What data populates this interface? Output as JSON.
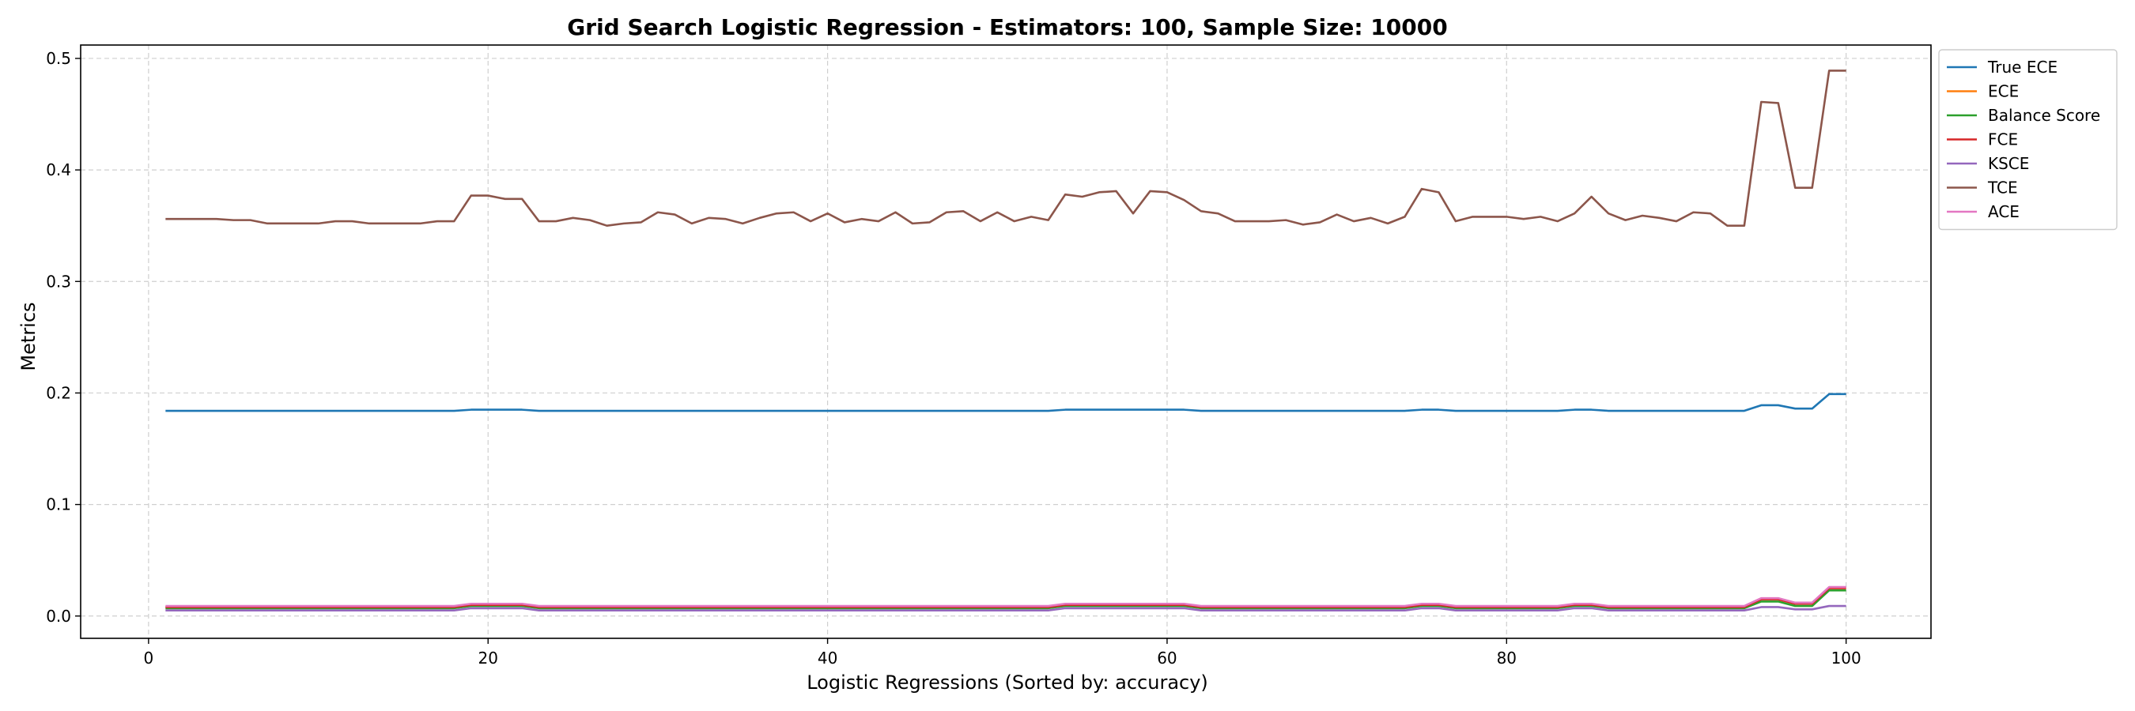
{
  "chart_data": {
    "type": "line",
    "title": "Grid Search Logistic Regression - Estimators: 100, Sample Size: 10000",
    "xlabel": "Logistic Regressions (Sorted by: accuracy)",
    "ylabel": "Metrics",
    "xlim": [
      -4,
      105
    ],
    "ylim": [
      -0.02,
      0.512
    ],
    "xticks": [
      0,
      20,
      40,
      60,
      80,
      100
    ],
    "yticks": [
      0.0,
      0.1,
      0.2,
      0.3,
      0.4,
      0.5
    ],
    "xtick_labels": [
      "0",
      "20",
      "40",
      "60",
      "80",
      "100"
    ],
    "ytick_labels": [
      "0.0",
      "0.1",
      "0.2",
      "0.3",
      "0.4",
      "0.5"
    ],
    "grid": true,
    "legend_position": "outside-top-right",
    "x_start": 1,
    "series": [
      {
        "name": "True ECE",
        "color": "#1f77b4",
        "values": [
          0.184,
          0.184,
          0.184,
          0.184,
          0.184,
          0.184,
          0.184,
          0.184,
          0.184,
          0.184,
          0.184,
          0.184,
          0.184,
          0.184,
          0.184,
          0.184,
          0.184,
          0.184,
          0.185,
          0.185,
          0.185,
          0.185,
          0.184,
          0.184,
          0.184,
          0.184,
          0.184,
          0.184,
          0.184,
          0.184,
          0.184,
          0.184,
          0.184,
          0.184,
          0.184,
          0.184,
          0.184,
          0.184,
          0.184,
          0.184,
          0.184,
          0.184,
          0.184,
          0.184,
          0.184,
          0.184,
          0.184,
          0.184,
          0.184,
          0.184,
          0.184,
          0.184,
          0.184,
          0.185,
          0.185,
          0.185,
          0.185,
          0.185,
          0.185,
          0.185,
          0.185,
          0.184,
          0.184,
          0.184,
          0.184,
          0.184,
          0.184,
          0.184,
          0.184,
          0.184,
          0.184,
          0.184,
          0.184,
          0.184,
          0.185,
          0.185,
          0.184,
          0.184,
          0.184,
          0.184,
          0.184,
          0.184,
          0.184,
          0.185,
          0.185,
          0.184,
          0.184,
          0.184,
          0.184,
          0.184,
          0.184,
          0.184,
          0.184,
          0.184,
          0.189,
          0.189,
          0.186,
          0.186,
          0.199,
          0.199
        ]
      },
      {
        "name": "ECE",
        "color": "#ff7f0e",
        "values": [
          0.008,
          0.008,
          0.008,
          0.008,
          0.008,
          0.008,
          0.008,
          0.008,
          0.008,
          0.008,
          0.008,
          0.008,
          0.008,
          0.008,
          0.008,
          0.008,
          0.008,
          0.008,
          0.01,
          0.01,
          0.01,
          0.01,
          0.008,
          0.008,
          0.008,
          0.008,
          0.008,
          0.008,
          0.008,
          0.008,
          0.008,
          0.008,
          0.008,
          0.008,
          0.008,
          0.008,
          0.008,
          0.008,
          0.008,
          0.008,
          0.008,
          0.008,
          0.008,
          0.008,
          0.008,
          0.008,
          0.008,
          0.008,
          0.008,
          0.008,
          0.008,
          0.008,
          0.008,
          0.01,
          0.01,
          0.01,
          0.01,
          0.01,
          0.01,
          0.01,
          0.01,
          0.008,
          0.008,
          0.008,
          0.008,
          0.008,
          0.008,
          0.008,
          0.008,
          0.008,
          0.008,
          0.008,
          0.008,
          0.008,
          0.01,
          0.01,
          0.008,
          0.008,
          0.008,
          0.008,
          0.008,
          0.008,
          0.008,
          0.01,
          0.01,
          0.008,
          0.008,
          0.008,
          0.008,
          0.008,
          0.008,
          0.008,
          0.008,
          0.008,
          0.015,
          0.015,
          0.011,
          0.011,
          0.025,
          0.025
        ]
      },
      {
        "name": "Balance Score",
        "color": "#2ca02c",
        "values": [
          0.007,
          0.007,
          0.007,
          0.007,
          0.007,
          0.007,
          0.007,
          0.007,
          0.007,
          0.007,
          0.007,
          0.007,
          0.007,
          0.007,
          0.007,
          0.007,
          0.007,
          0.007,
          0.009,
          0.009,
          0.009,
          0.009,
          0.007,
          0.007,
          0.007,
          0.007,
          0.007,
          0.007,
          0.007,
          0.007,
          0.007,
          0.007,
          0.007,
          0.007,
          0.007,
          0.007,
          0.007,
          0.007,
          0.007,
          0.007,
          0.007,
          0.007,
          0.007,
          0.007,
          0.007,
          0.007,
          0.007,
          0.007,
          0.007,
          0.007,
          0.007,
          0.007,
          0.007,
          0.009,
          0.009,
          0.009,
          0.009,
          0.009,
          0.009,
          0.009,
          0.009,
          0.007,
          0.007,
          0.007,
          0.007,
          0.007,
          0.007,
          0.007,
          0.007,
          0.007,
          0.007,
          0.007,
          0.007,
          0.007,
          0.009,
          0.009,
          0.007,
          0.007,
          0.007,
          0.007,
          0.007,
          0.007,
          0.007,
          0.009,
          0.009,
          0.007,
          0.007,
          0.007,
          0.007,
          0.007,
          0.007,
          0.007,
          0.007,
          0.007,
          0.013,
          0.013,
          0.009,
          0.009,
          0.023,
          0.023
        ]
      },
      {
        "name": "FCE",
        "color": "#d62728",
        "values": [
          0.008,
          0.008,
          0.008,
          0.008,
          0.008,
          0.008,
          0.008,
          0.008,
          0.008,
          0.008,
          0.008,
          0.008,
          0.008,
          0.008,
          0.008,
          0.008,
          0.008,
          0.008,
          0.01,
          0.01,
          0.01,
          0.01,
          0.008,
          0.008,
          0.008,
          0.008,
          0.008,
          0.008,
          0.008,
          0.008,
          0.008,
          0.008,
          0.008,
          0.008,
          0.008,
          0.008,
          0.008,
          0.008,
          0.008,
          0.008,
          0.008,
          0.008,
          0.008,
          0.008,
          0.008,
          0.008,
          0.008,
          0.008,
          0.008,
          0.008,
          0.008,
          0.008,
          0.008,
          0.01,
          0.01,
          0.01,
          0.01,
          0.01,
          0.01,
          0.01,
          0.01,
          0.008,
          0.008,
          0.008,
          0.008,
          0.008,
          0.008,
          0.008,
          0.008,
          0.008,
          0.008,
          0.008,
          0.008,
          0.008,
          0.01,
          0.01,
          0.008,
          0.008,
          0.008,
          0.008,
          0.008,
          0.008,
          0.008,
          0.01,
          0.01,
          0.008,
          0.008,
          0.008,
          0.008,
          0.008,
          0.008,
          0.008,
          0.008,
          0.008,
          0.015,
          0.015,
          0.011,
          0.011,
          0.025,
          0.025
        ]
      },
      {
        "name": "KSCE",
        "color": "#9467bd",
        "values": [
          0.005,
          0.005,
          0.005,
          0.005,
          0.005,
          0.005,
          0.005,
          0.005,
          0.005,
          0.005,
          0.005,
          0.005,
          0.005,
          0.005,
          0.005,
          0.005,
          0.005,
          0.005,
          0.007,
          0.007,
          0.007,
          0.007,
          0.005,
          0.005,
          0.005,
          0.005,
          0.005,
          0.005,
          0.005,
          0.005,
          0.005,
          0.005,
          0.005,
          0.005,
          0.005,
          0.005,
          0.005,
          0.005,
          0.005,
          0.005,
          0.005,
          0.005,
          0.005,
          0.005,
          0.005,
          0.005,
          0.005,
          0.005,
          0.005,
          0.005,
          0.005,
          0.005,
          0.005,
          0.007,
          0.007,
          0.007,
          0.007,
          0.007,
          0.007,
          0.007,
          0.007,
          0.005,
          0.005,
          0.005,
          0.005,
          0.005,
          0.005,
          0.005,
          0.005,
          0.005,
          0.005,
          0.005,
          0.005,
          0.005,
          0.007,
          0.007,
          0.005,
          0.005,
          0.005,
          0.005,
          0.005,
          0.005,
          0.005,
          0.007,
          0.007,
          0.005,
          0.005,
          0.005,
          0.005,
          0.005,
          0.005,
          0.005,
          0.005,
          0.005,
          0.008,
          0.008,
          0.006,
          0.006,
          0.009,
          0.009
        ]
      },
      {
        "name": "TCE",
        "color": "#8c564b",
        "values": [
          0.356,
          0.356,
          0.356,
          0.356,
          0.355,
          0.355,
          0.352,
          0.352,
          0.352,
          0.352,
          0.354,
          0.354,
          0.352,
          0.352,
          0.352,
          0.352,
          0.354,
          0.354,
          0.377,
          0.377,
          0.374,
          0.374,
          0.354,
          0.354,
          0.357,
          0.355,
          0.35,
          0.352,
          0.353,
          0.362,
          0.36,
          0.352,
          0.357,
          0.356,
          0.352,
          0.357,
          0.361,
          0.362,
          0.354,
          0.361,
          0.353,
          0.356,
          0.354,
          0.362,
          0.352,
          0.353,
          0.362,
          0.363,
          0.354,
          0.362,
          0.354,
          0.358,
          0.355,
          0.378,
          0.376,
          0.38,
          0.381,
          0.361,
          0.381,
          0.38,
          0.373,
          0.363,
          0.361,
          0.354,
          0.354,
          0.354,
          0.355,
          0.351,
          0.353,
          0.36,
          0.354,
          0.357,
          0.352,
          0.358,
          0.383,
          0.38,
          0.354,
          0.358,
          0.358,
          0.358,
          0.356,
          0.358,
          0.354,
          0.361,
          0.376,
          0.361,
          0.355,
          0.359,
          0.357,
          0.354,
          0.362,
          0.361,
          0.35,
          0.35,
          0.461,
          0.46,
          0.384,
          0.384,
          0.489,
          0.489
        ]
      },
      {
        "name": "ACE",
        "color": "#e377c2",
        "values": [
          0.009,
          0.009,
          0.009,
          0.009,
          0.009,
          0.009,
          0.009,
          0.009,
          0.009,
          0.009,
          0.009,
          0.009,
          0.009,
          0.009,
          0.009,
          0.009,
          0.009,
          0.009,
          0.011,
          0.011,
          0.011,
          0.011,
          0.009,
          0.009,
          0.009,
          0.009,
          0.009,
          0.009,
          0.009,
          0.009,
          0.009,
          0.009,
          0.009,
          0.009,
          0.009,
          0.009,
          0.009,
          0.009,
          0.009,
          0.009,
          0.009,
          0.009,
          0.009,
          0.009,
          0.009,
          0.009,
          0.009,
          0.009,
          0.009,
          0.009,
          0.009,
          0.009,
          0.009,
          0.011,
          0.011,
          0.011,
          0.011,
          0.011,
          0.011,
          0.011,
          0.011,
          0.009,
          0.009,
          0.009,
          0.009,
          0.009,
          0.009,
          0.009,
          0.009,
          0.009,
          0.009,
          0.009,
          0.009,
          0.009,
          0.011,
          0.011,
          0.009,
          0.009,
          0.009,
          0.009,
          0.009,
          0.009,
          0.009,
          0.011,
          0.011,
          0.009,
          0.009,
          0.009,
          0.009,
          0.009,
          0.009,
          0.009,
          0.009,
          0.009,
          0.016,
          0.016,
          0.012,
          0.012,
          0.026,
          0.026
        ]
      }
    ]
  }
}
